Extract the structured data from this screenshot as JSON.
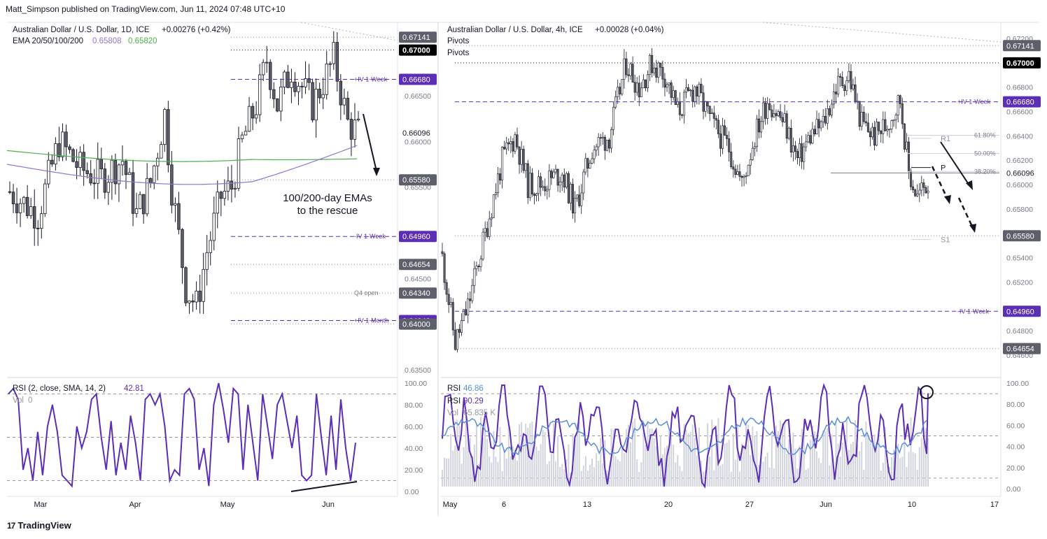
{
  "header": "Matt_Simpson published on TradingView.com, Jun 11, 2024 07:48 UTC+10",
  "footer": "TradingView",
  "colors": {
    "up": "#ffffff",
    "down": "#5d606b",
    "ema_green": "#4caf50",
    "ema_purple": "#9575cd",
    "rsi": "#5b2eb5",
    "rsi_blue": "#5b8fd9",
    "label_dark": "#5d606b",
    "label_black": "#000000",
    "label_purple": "#5b2eb5",
    "pivot": "#9598a1"
  },
  "left": {
    "title": "Australian Dollar / U.S. Dollar, 1D, ICE",
    "change": "+0.00276 (+0.42%)",
    "ema_label": "EMA 20/50/100/200",
    "ema_v1": "0.65808",
    "ema_v2": "0.65820",
    "annotation_line1": "100/200-day EMAs",
    "annotation_line2": "to the rescue",
    "price_ticks": [
      "0.66500",
      "0.66000",
      "0.65500",
      "0.64500",
      "0.63500"
    ],
    "price_tick_vals": [
      0.665,
      0.66,
      0.655,
      0.645,
      0.635
    ],
    "labels": [
      {
        "text": "0.67141",
        "value": 0.67141,
        "style": "dark"
      },
      {
        "text": "0.67000",
        "value": 0.67,
        "style": "black"
      },
      {
        "text": "0.66680",
        "value": 0.6668,
        "style": "purple",
        "tag": "+IV 1-Week"
      },
      {
        "text": "0.66096",
        "value": 0.66096,
        "style": "plain"
      },
      {
        "text": "0.65580",
        "value": 0.6558,
        "style": "dark"
      },
      {
        "text": "0.64960",
        "value": 0.6496,
        "style": "purple",
        "tag": "-IV 1-Week"
      },
      {
        "text": "0.64654",
        "value": 0.64654,
        "style": "dark"
      },
      {
        "text": "0.64340",
        "value": 0.6434,
        "style": "dark",
        "tag": "Q4 open"
      },
      {
        "text": "0.64040",
        "value": 0.6404,
        "style": "purple",
        "tag": "+IV 1-Month"
      },
      {
        "text": "0.64000",
        "value": 0.64,
        "style": "dark"
      }
    ],
    "rsi_header": "RSI (2, close, SMA, 14, 2)",
    "rsi_value": "42.81",
    "vol_label": "Vol",
    "vol_value": "0",
    "rsi_ticks": [
      "100.00",
      "80.00",
      "60.00",
      "40.00",
      "20.00",
      "0.00"
    ],
    "x_labels": [
      "Mar",
      "Apr",
      "May",
      "Jun"
    ]
  },
  "right": {
    "title": "Australian Dollar / U.S. Dollar, 4h, ICE",
    "change": "+0.00028 (+0.04%)",
    "pivots1": "Pivots",
    "pivots2": "Pivots",
    "price_ticks": [
      "0.67200",
      "0.66800",
      "0.66600",
      "0.66400",
      "0.66200",
      "0.66000",
      "0.65800",
      "0.65400",
      "0.65200",
      "0.64800",
      "0.64600"
    ],
    "price_tick_vals": [
      0.672,
      0.668,
      0.666,
      0.664,
      0.662,
      0.66,
      0.658,
      0.654,
      0.652,
      0.648,
      0.646
    ],
    "labels": [
      {
        "text": "0.67141",
        "value": 0.67141,
        "style": "dark"
      },
      {
        "text": "0.67000",
        "value": 0.67,
        "style": "black"
      },
      {
        "text": "0.66680",
        "value": 0.6668,
        "style": "purple",
        "tag": "+IV 1-Week"
      },
      {
        "text": "0.66096",
        "value": 0.66096,
        "style": "plain"
      },
      {
        "text": "0.65580",
        "value": 0.6558,
        "style": "dark"
      },
      {
        "text": "0.64960",
        "value": 0.6496,
        "style": "purple",
        "tag": "-IV 1-Week"
      },
      {
        "text": "0.64654",
        "value": 0.64654,
        "style": "dark"
      }
    ],
    "pivot_labels": [
      "R1",
      "P",
      "S1"
    ],
    "fib_labels": [
      "61.80%",
      "50.00%",
      "38.20%"
    ],
    "rsi1_label": "RSI",
    "rsi1_value": "46.86",
    "rsi2_label": "RSI",
    "rsi2_value": "90.29",
    "vol_label": "Vol",
    "vol_value": "65.835 K",
    "rsi_ticks": [
      "100.00",
      "80.00",
      "60.00",
      "40.00",
      "20.00",
      "0.00"
    ],
    "x_labels": [
      "May",
      "6",
      "13",
      "20",
      "27",
      "Jun",
      "10",
      "17"
    ]
  },
  "chart_data": [
    {
      "type": "candlestick",
      "title": "Australian Dollar / U.S. Dollar, 1D, ICE",
      "x_range": [
        "2024-02-20",
        "2024-06-10"
      ],
      "ylim": [
        0.634,
        0.6725
      ],
      "ohlc_close_sample": [
        0.6552,
        0.6545,
        0.6575,
        0.6528,
        0.6493,
        0.6505,
        0.6525,
        0.6598,
        0.6607,
        0.6571,
        0.6565,
        0.6558,
        0.6541,
        0.6527,
        0.6521,
        0.6583,
        0.6587,
        0.6578,
        0.6546,
        0.653,
        0.6512,
        0.6553,
        0.6576,
        0.6628,
        0.6547,
        0.647,
        0.6442,
        0.641,
        0.6427,
        0.6452,
        0.6476,
        0.6511,
        0.6547,
        0.6593,
        0.6555,
        0.6608,
        0.6645,
        0.6617,
        0.662,
        0.662,
        0.6643,
        0.6649,
        0.6685,
        0.668,
        0.6644,
        0.6633,
        0.6649,
        0.6618,
        0.664,
        0.6668,
        0.6677,
        0.6671,
        0.6657,
        0.6608,
        0.6611
      ],
      "ema_100_end": 0.65808,
      "ema_200_end": 0.6582,
      "rsi_2": {
        "ylim": [
          0,
          100
        ],
        "last": 42.81
      }
    },
    {
      "type": "candlestick",
      "title": "Australian Dollar / U.S. Dollar, 4h, ICE",
      "x_range": [
        "2024-05-01",
        "2024-06-11"
      ],
      "ylim": [
        0.6445,
        0.6728
      ],
      "levels": {
        "R1": 0.6638,
        "P": 0.6614,
        "S1": 0.6555,
        "fib_61.8": 0.66405,
        "fib_50": 0.66256,
        "fib_38.2": 0.66108
      },
      "rsi_2": {
        "ylim": [
          0,
          100
        ],
        "last": 90.29
      },
      "rsi_14_last": 46.86,
      "volume_last": "65.835 K"
    }
  ]
}
